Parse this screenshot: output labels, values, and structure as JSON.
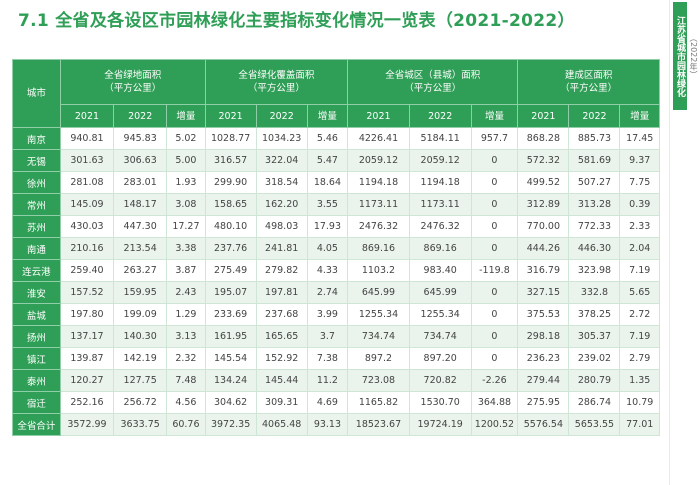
{
  "title": "7.1  全省及各设区市园林绿化主要指标变化情况一览表（2021-2022）",
  "side_tab": {
    "main": "江苏省城市园林绿化",
    "sub": "（2022年）"
  },
  "table": {
    "city_header": "城市",
    "groups": [
      "全省绿地面积\n（平方公里）",
      "全省绿化覆盖面积\n（平方公里）",
      "全省城区（县城）面积\n（平方公里）",
      "建成区面积\n（平方公里）"
    ],
    "sub_headers": [
      "2021",
      "2022",
      "增量"
    ],
    "rows": [
      {
        "city": "南京",
        "values": [
          "940.81",
          "945.83",
          "5.02",
          "1028.77",
          "1034.23",
          "5.46",
          "4226.41",
          "5184.11",
          "957.7",
          "868.28",
          "885.73",
          "17.45"
        ]
      },
      {
        "city": "无锡",
        "values": [
          "301.63",
          "306.63",
          "5.00",
          "316.57",
          "322.04",
          "5.47",
          "2059.12",
          "2059.12",
          "0",
          "572.32",
          "581.69",
          "9.37"
        ]
      },
      {
        "city": "徐州",
        "values": [
          "281.08",
          "283.01",
          "1.93",
          "299.90",
          "318.54",
          "18.64",
          "1194.18",
          "1194.18",
          "0",
          "499.52",
          "507.27",
          "7.75"
        ]
      },
      {
        "city": "常州",
        "values": [
          "145.09",
          "148.17",
          "3.08",
          "158.65",
          "162.20",
          "3.55",
          "1173.11",
          "1173.11",
          "0",
          "312.89",
          "313.28",
          "0.39"
        ]
      },
      {
        "city": "苏州",
        "values": [
          "430.03",
          "447.30",
          "17.27",
          "480.10",
          "498.03",
          "17.93",
          "2476.32",
          "2476.32",
          "0",
          "770.00",
          "772.33",
          "2.33"
        ]
      },
      {
        "city": "南通",
        "values": [
          "210.16",
          "213.54",
          "3.38",
          "237.76",
          "241.81",
          "4.05",
          "869.16",
          "869.16",
          "0",
          "444.26",
          "446.30",
          "2.04"
        ]
      },
      {
        "city": "连云港",
        "values": [
          "259.40",
          "263.27",
          "3.87",
          "275.49",
          "279.82",
          "4.33",
          "1103.2",
          "983.40",
          "-119.8",
          "316.79",
          "323.98",
          "7.19"
        ]
      },
      {
        "city": "淮安",
        "values": [
          "157.52",
          "159.95",
          "2.43",
          "195.07",
          "197.81",
          "2.74",
          "645.99",
          "645.99",
          "0",
          "327.15",
          "332.8",
          "5.65"
        ]
      },
      {
        "city": "盐城",
        "values": [
          "197.80",
          "199.09",
          "1.29",
          "233.69",
          "237.68",
          "3.99",
          "1255.34",
          "1255.34",
          "0",
          "375.53",
          "378.25",
          "2.72"
        ]
      },
      {
        "city": "扬州",
        "values": [
          "137.17",
          "140.30",
          "3.13",
          "161.95",
          "165.65",
          "3.7",
          "734.74",
          "734.74",
          "0",
          "298.18",
          "305.37",
          "7.19"
        ]
      },
      {
        "city": "镇江",
        "values": [
          "139.87",
          "142.19",
          "2.32",
          "145.54",
          "152.92",
          "7.38",
          "897.2",
          "897.20",
          "0",
          "236.23",
          "239.02",
          "2.79"
        ]
      },
      {
        "city": "泰州",
        "values": [
          "120.27",
          "127.75",
          "7.48",
          "134.24",
          "145.44",
          "11.2",
          "723.08",
          "720.82",
          "-2.26",
          "279.44",
          "280.79",
          "1.35"
        ]
      },
      {
        "city": "宿迁",
        "values": [
          "252.16",
          "256.72",
          "4.56",
          "304.62",
          "309.31",
          "4.69",
          "1165.82",
          "1530.70",
          "364.88",
          "275.95",
          "286.74",
          "10.79"
        ]
      },
      {
        "city": "全省合计",
        "values": [
          "3572.99",
          "3633.75",
          "60.76",
          "3972.35",
          "4065.48",
          "93.13",
          "18523.67",
          "19724.19",
          "1200.52",
          "5576.54",
          "5653.55",
          "77.01"
        ]
      }
    ]
  },
  "colors": {
    "accent": "#2f9e56",
    "stripe": "#eaf4ec"
  }
}
